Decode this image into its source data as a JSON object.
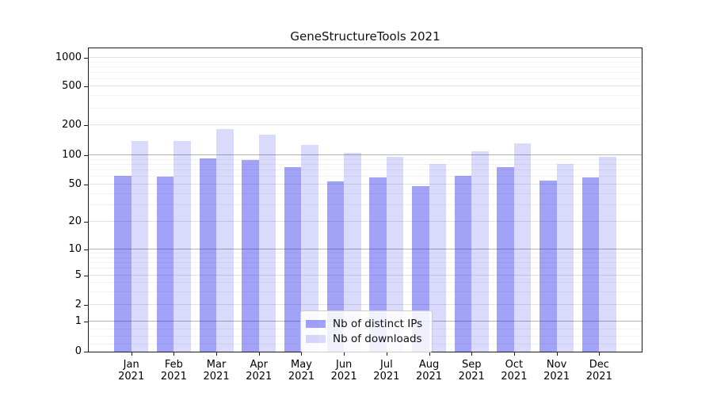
{
  "title": "GeneStructureTools 2021",
  "chart_data": {
    "type": "bar",
    "title": "GeneStructureTools 2021",
    "categories": [
      "Jan 2021",
      "Feb 2021",
      "Mar 2021",
      "Apr 2021",
      "May 2021",
      "Jun 2021",
      "Jul 2021",
      "Aug 2021",
      "Sep 2021",
      "Oct 2021",
      "Nov 2021",
      "Dec 2021"
    ],
    "series": [
      {
        "name": "Nb of distinct IPs",
        "color": "rgba(10,10,235,0.38)",
        "values": [
          62,
          60,
          93,
          89,
          75,
          54,
          59,
          48,
          62,
          75,
          55,
          59
        ]
      },
      {
        "name": "Nb of downloads",
        "color": "rgba(10,10,235,0.15)",
        "values": [
          138,
          138,
          183,
          160,
          127,
          106,
          96,
          82,
          110,
          132,
          82,
          96
        ]
      }
    ],
    "yscale": "symlog",
    "yticks": [
      0,
      1,
      2,
      5,
      10,
      20,
      50,
      100,
      200,
      500,
      1000
    ],
    "ylim": [
      0,
      1150
    ],
    "grid": true,
    "legend_position": "lower center inside"
  },
  "legend": {
    "items": [
      {
        "label": "Nb of distinct IPs"
      },
      {
        "label": "Nb of downloads"
      }
    ]
  },
  "colors": {
    "bar_dark": "rgba(10,10,235,0.38)",
    "bar_light": "rgba(10,10,235,0.15)",
    "grid_decade": "#b3b3b3",
    "grid_labeled": "#e3e3e3",
    "grid_minor": "#f2f2f2",
    "spine": "#1a1a1a"
  }
}
